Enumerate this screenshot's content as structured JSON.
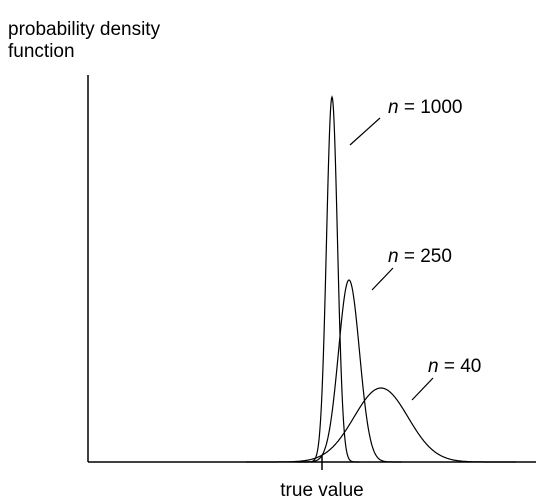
{
  "y_label": [
    "probability density",
    "function"
  ],
  "x_label": "true value",
  "curves": [
    {
      "symbol": "n",
      "rest": " = 1000"
    },
    {
      "symbol": "n",
      "rest": " = 250"
    },
    {
      "symbol": "n",
      "rest": " = 40"
    }
  ]
}
